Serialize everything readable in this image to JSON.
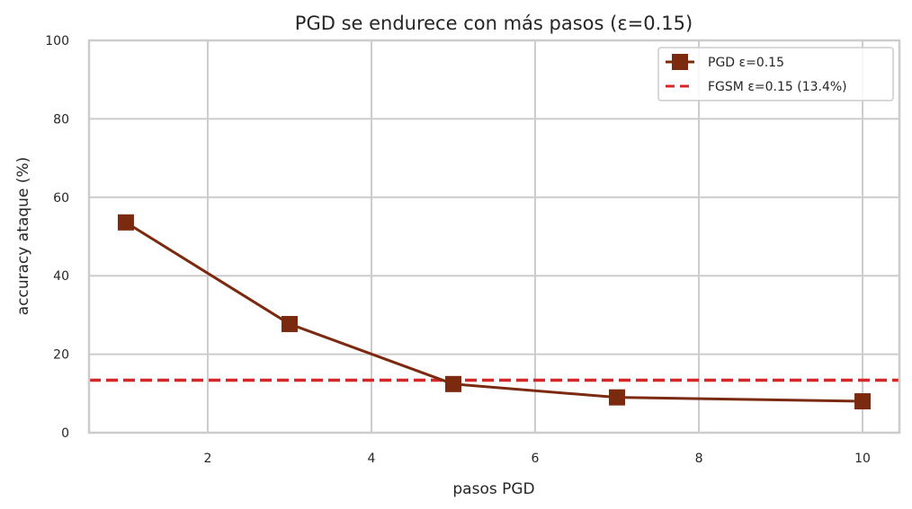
{
  "chart_data": {
    "type": "line",
    "title": "PGD se endurece con más pasos (ε=0.15)",
    "xlabel": "pasos PGD",
    "ylabel": "accuracy ataque (%)",
    "xlim": [
      0.55,
      10.45
    ],
    "ylim": [
      0,
      100
    ],
    "xticks": [
      2,
      4,
      6,
      8,
      10
    ],
    "yticks": [
      0,
      20,
      40,
      60,
      80,
      100
    ],
    "grid": true,
    "legend_position": "top-right",
    "series": [
      {
        "name": "PGD ε=0.15",
        "x": [
          1,
          3,
          5,
          7,
          10
        ],
        "y": [
          53.6,
          27.7,
          12.4,
          9.0,
          8.0
        ],
        "color": "#7b2a10",
        "marker": "square",
        "style": "solid"
      }
    ],
    "reference_lines": [
      {
        "name": "FGSM ε=0.15 (13.4%)",
        "y": 13.4,
        "color": "#d62728",
        "style": "dashed"
      }
    ]
  }
}
